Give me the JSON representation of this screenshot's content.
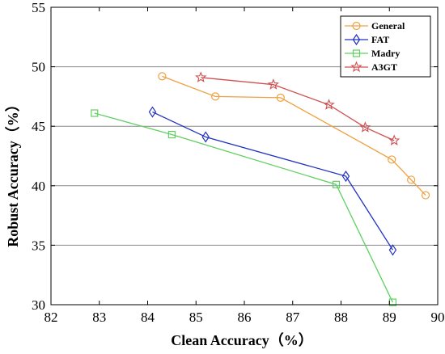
{
  "chart_data": {
    "type": "line",
    "xlabel": "Clean Accuracy（%）",
    "ylabel": "Robust Accuracy（%）",
    "xlim": [
      82,
      90
    ],
    "ylim": [
      30,
      55
    ],
    "xticks": [
      82,
      83,
      84,
      85,
      86,
      87,
      88,
      89,
      90
    ],
    "yticks": [
      30,
      35,
      40,
      45,
      50,
      55
    ],
    "grid": "horizontal",
    "legend_position": "top-right",
    "series": [
      {
        "name": "General",
        "color": "#F0A040",
        "marker": "circle",
        "points": [
          [
            84.3,
            49.2
          ],
          [
            85.4,
            47.5
          ],
          [
            86.75,
            47.4
          ],
          [
            89.05,
            42.2
          ],
          [
            89.45,
            40.5
          ],
          [
            89.75,
            39.2
          ]
        ]
      },
      {
        "name": "FAT",
        "color": "#2030C0",
        "marker": "diamond",
        "points": [
          [
            84.1,
            46.2
          ],
          [
            85.2,
            44.1
          ],
          [
            88.1,
            40.8
          ],
          [
            89.07,
            34.6
          ]
        ]
      },
      {
        "name": "Madry",
        "color": "#60D060",
        "marker": "square",
        "points": [
          [
            82.9,
            46.1
          ],
          [
            84.5,
            44.3
          ],
          [
            87.9,
            40.1
          ],
          [
            89.07,
            30.2
          ]
        ]
      },
      {
        "name": "A3GT",
        "color": "#D05050",
        "marker": "star",
        "points": [
          [
            85.1,
            49.1
          ],
          [
            86.6,
            48.5
          ],
          [
            87.75,
            46.8
          ],
          [
            88.5,
            44.9
          ],
          [
            89.1,
            43.8
          ]
        ]
      }
    ]
  }
}
